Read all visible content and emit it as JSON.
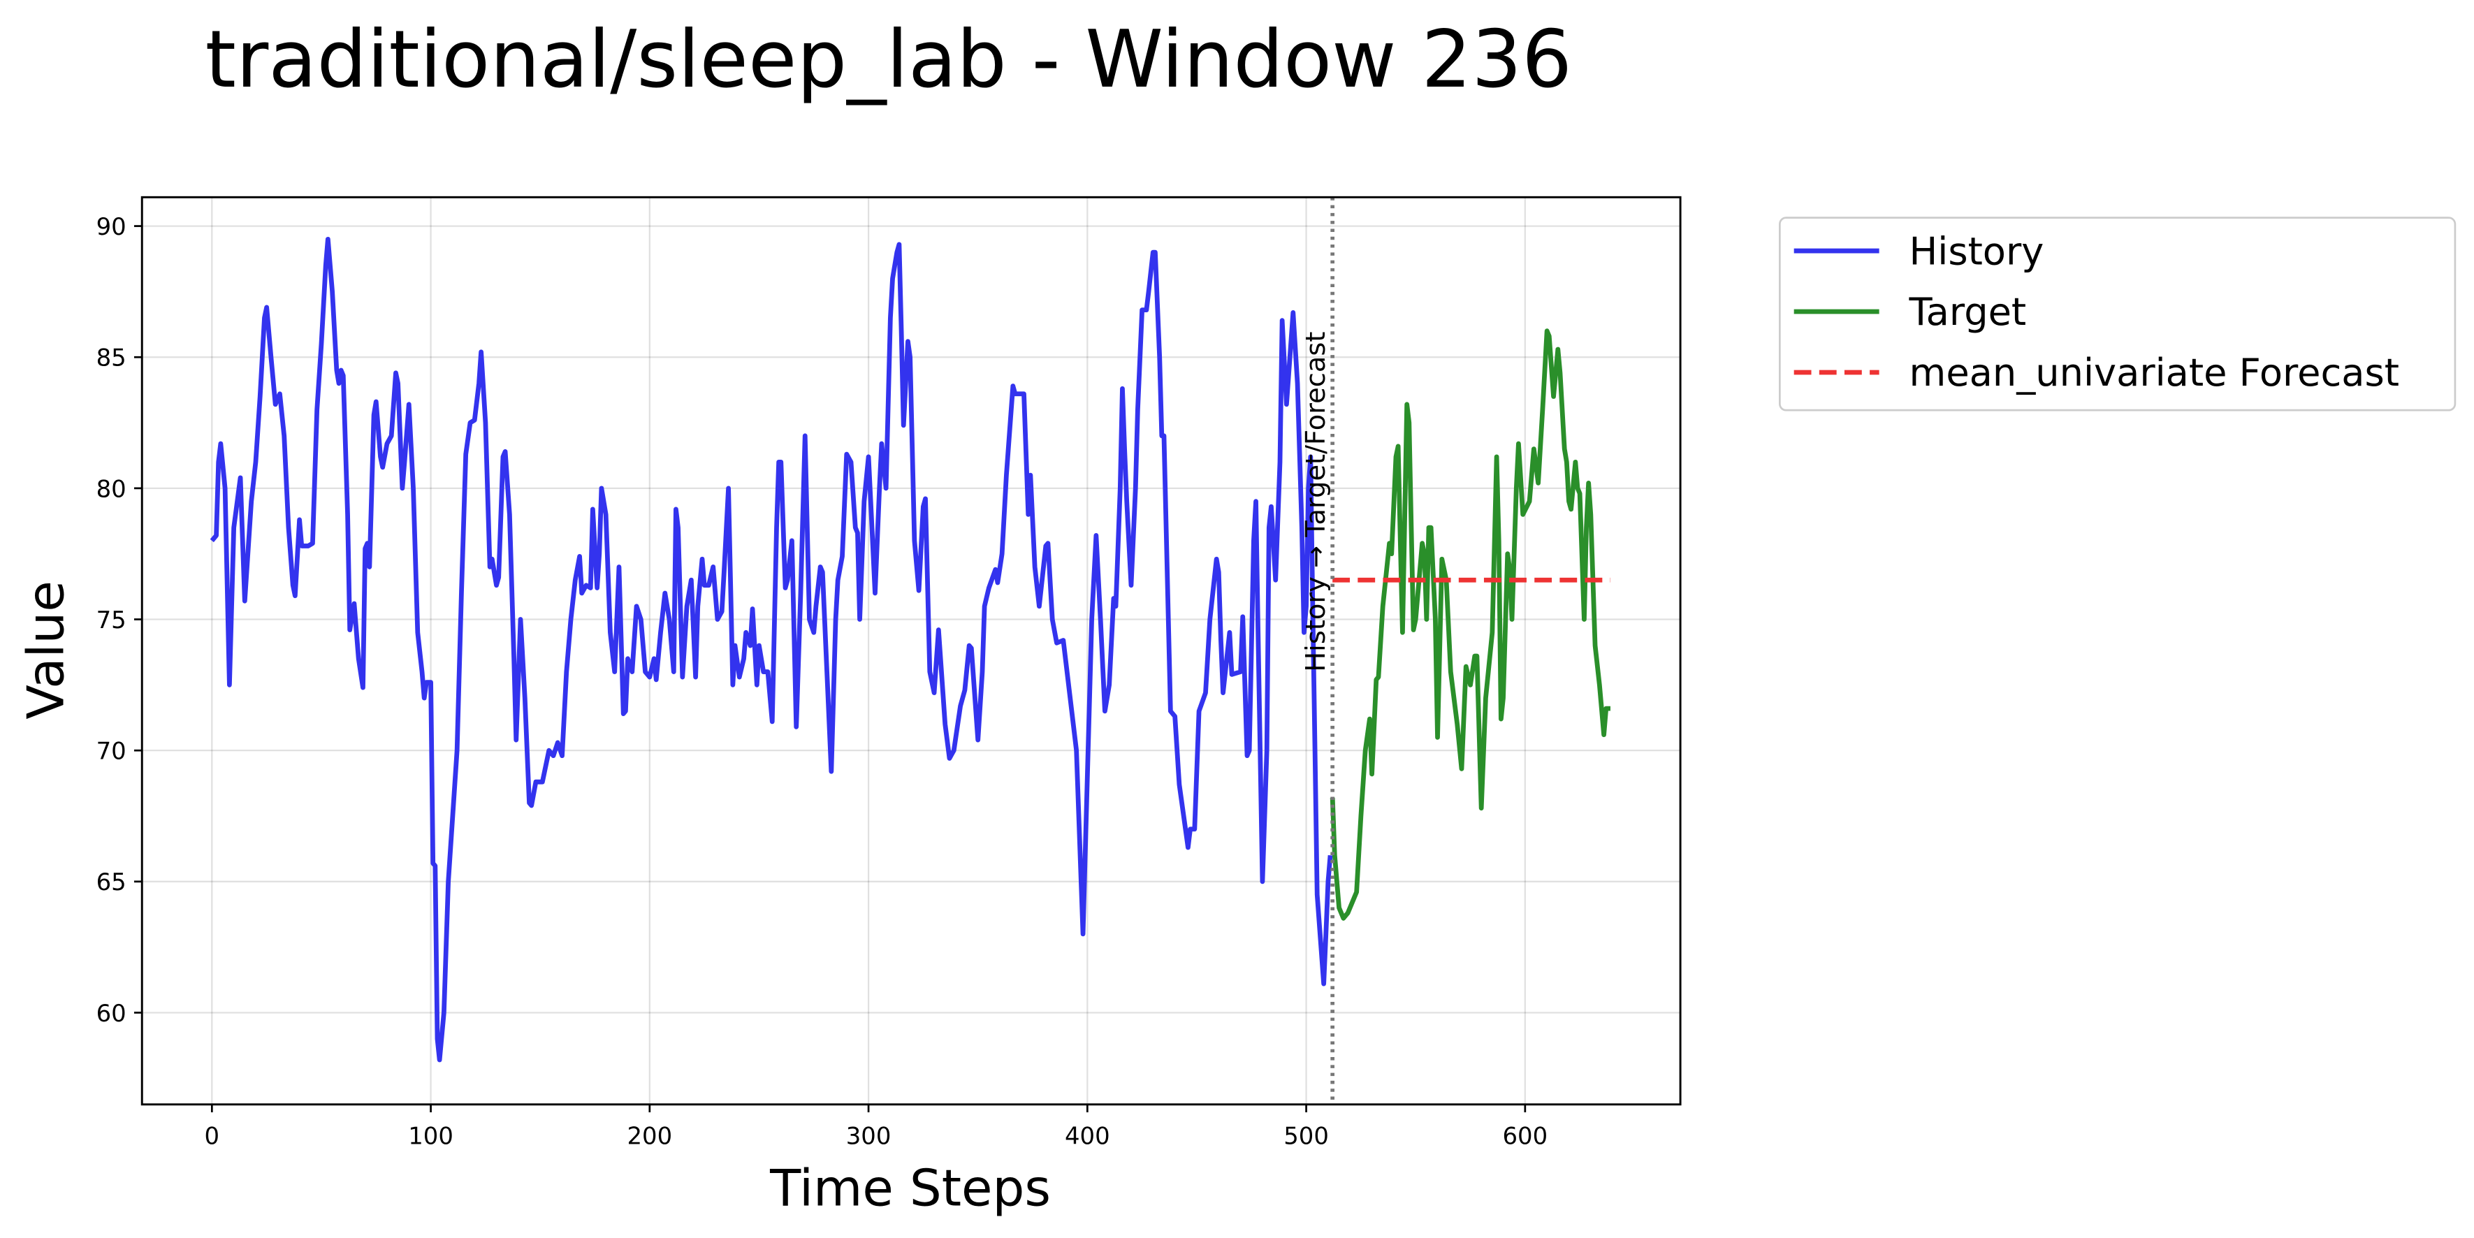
{
  "chart_data": {
    "type": "line",
    "title": "traditional/sleep_lab - Window 236",
    "x_label": "Time Steps",
    "y_label": "Value",
    "xlim": [
      -31.95,
      670.95
    ],
    "ylim": [
      56.5,
      91.1
    ],
    "xticks": [
      0,
      100,
      200,
      300,
      400,
      500,
      600
    ],
    "yticks": [
      60,
      65,
      70,
      75,
      80,
      85,
      90
    ],
    "grid": true,
    "legend": "outside-upper-right",
    "vline": {
      "x": 512,
      "label": "History → Target/Forecast",
      "color": "#777777"
    },
    "series": [
      {
        "name": "History",
        "color": "#3333ee",
        "style": "solid",
        "x": [
          0,
          2,
          3,
          4,
          6,
          8,
          10,
          13,
          15,
          18,
          20,
          22,
          24,
          25,
          27,
          29,
          31,
          33,
          35,
          37,
          38,
          40,
          41,
          44,
          46,
          48,
          50,
          52,
          53,
          55,
          57,
          58,
          59,
          60,
          62,
          63,
          65,
          67,
          69,
          70,
          71,
          72,
          74,
          75,
          77,
          78,
          80,
          82,
          84,
          85,
          87,
          88,
          90,
          92,
          94,
          96,
          97,
          98,
          100,
          101,
          102,
          103,
          104,
          106,
          108,
          110,
          112,
          114,
          116,
          118,
          120,
          122,
          123,
          125,
          127,
          128,
          130,
          131,
          133,
          134,
          136,
          138,
          139,
          141,
          143,
          145,
          146,
          148,
          151,
          154,
          156,
          158,
          160,
          162,
          164,
          166,
          168,
          169,
          171,
          173,
          174,
          176,
          177,
          178,
          180,
          182,
          184,
          186,
          188,
          189,
          190,
          192,
          194,
          196,
          198,
          200,
          202,
          203,
          205,
          207,
          209,
          211,
          212,
          213,
          215,
          217,
          219,
          221,
          222,
          224,
          225,
          227,
          229,
          231,
          233,
          234,
          236,
          238,
          239,
          241,
          243,
          244,
          246,
          247,
          249,
          250,
          252,
          254,
          256,
          258,
          259,
          260,
          262,
          263,
          265,
          267,
          269,
          271,
          273,
          275,
          276,
          278,
          279,
          281,
          283,
          285,
          286,
          288,
          290,
          292,
          294,
          295,
          296,
          298,
          300,
          301,
          303,
          305,
          306,
          308,
          310,
          311,
          313,
          314,
          315,
          316,
          318,
          319,
          321,
          323,
          325,
          326,
          328,
          330,
          332,
          335,
          337,
          339,
          342,
          344,
          346,
          347,
          350,
          352,
          353,
          355,
          358,
          359,
          361,
          363,
          366,
          367,
          371,
          373,
          374,
          376,
          378,
          381,
          382,
          384,
          386,
          389,
          395,
          398,
          400,
          402,
          404,
          406,
          408,
          410,
          412,
          413,
          415,
          416,
          417,
          418,
          420,
          422,
          423,
          425,
          427,
          428,
          430,
          431,
          433,
          434,
          435,
          437,
          438,
          440,
          442,
          444,
          446,
          447,
          449,
          451,
          454,
          456,
          459,
          460,
          461,
          462,
          465,
          466,
          470,
          471,
          473,
          474,
          476,
          477,
          478,
          480,
          482,
          483,
          484,
          486,
          488,
          489,
          491,
          494,
          496,
          498,
          499,
          500,
          501,
          502,
          503,
          504,
          505,
          508,
          509,
          510,
          511
        ],
        "values": [
          78,
          78.2,
          81,
          81.7,
          80,
          72.5,
          78.5,
          80.4,
          75.7,
          79.5,
          81,
          83.5,
          86.5,
          86.9,
          85,
          83.2,
          83.6,
          82,
          78.5,
          76.3,
          75.9,
          78.8,
          77.8,
          77.8,
          77.9,
          83,
          85.5,
          88.5,
          89.5,
          87.5,
          84.5,
          84,
          84.5,
          84.3,
          79,
          74.6,
          75.6,
          73.5,
          72.4,
          77.7,
          77.9,
          77,
          82.8,
          83.3,
          81.2,
          80.8,
          81.7,
          82,
          84.4,
          84,
          80,
          81,
          83.2,
          80,
          74.5,
          73,
          72,
          72.6,
          72.6,
          65.7,
          65.6,
          59,
          58.2,
          60,
          65,
          67.5,
          70,
          76,
          81.3,
          82.5,
          82.6,
          84,
          85.2,
          82.5,
          77,
          77.3,
          76.3,
          76.6,
          81.2,
          81.4,
          79,
          73.5,
          70.4,
          75,
          72,
          68,
          67.9,
          68.8,
          68.8,
          70,
          69.8,
          70.3,
          69.8,
          73,
          75,
          76.5,
          77.4,
          76,
          76.3,
          76.2,
          79.2,
          76.2,
          77.5,
          80,
          79,
          74.5,
          73,
          77,
          71.4,
          71.5,
          73.5,
          73,
          75.5,
          75,
          73,
          72.8,
          73.5,
          72.7,
          74.5,
          76,
          75,
          73,
          79.2,
          78.5,
          72.8,
          75.5,
          76.5,
          72.8,
          75.5,
          77.3,
          76.3,
          76.3,
          77,
          75,
          75.3,
          76.8,
          80,
          72.5,
          74,
          72.8,
          73.5,
          74.5,
          74,
          75.4,
          72.5,
          74,
          73,
          73,
          71.1,
          78.5,
          81,
          81,
          76.2,
          76.5,
          78,
          70.9,
          76,
          82,
          75,
          74.5,
          75.5,
          77,
          76.8,
          73,
          69.2,
          75,
          76.5,
          77.4,
          81.3,
          81,
          78.5,
          78.3,
          75,
          79.5,
          81.2,
          79.5,
          76,
          80,
          81.7,
          80,
          86.5,
          88,
          89,
          89.3,
          86,
          82.4,
          85.6,
          85,
          78,
          76.1,
          79.3,
          79.6,
          73,
          72.2,
          74.6,
          71,
          69.7,
          70,
          71.7,
          72.3,
          74,
          73.9,
          70.4,
          73,
          75.5,
          76.2,
          76.9,
          76.4,
          77.5,
          80.5,
          83.9,
          83.6,
          83.6,
          79,
          80.5,
          77,
          75.5,
          77.8,
          77.9,
          75,
          74.1,
          74.2,
          70,
          63,
          69,
          75,
          78.2,
          75,
          71.5,
          72.5,
          75.8,
          75.5,
          80,
          83.8,
          81.5,
          79.5,
          76.3,
          80,
          83,
          86.8,
          86.8,
          87.5,
          89,
          89,
          85,
          82,
          82,
          75,
          71.5,
          71.3,
          68.7,
          67.5,
          66.3,
          67,
          67,
          71.5,
          72.2,
          75,
          77.3,
          76.8,
          74.2,
          72.2,
          74.5,
          72.9,
          73,
          75.1,
          69.8,
          70,
          78,
          79.5,
          74.5,
          65,
          70,
          78.5,
          79.3,
          76.5,
          81,
          86.4,
          83.2,
          86.7,
          84,
          78.5,
          74.5,
          75.5,
          80,
          81.2,
          75.3,
          70,
          64.5,
          61.1,
          63,
          65,
          66
        ]
      },
      {
        "name": "Target",
        "color": "#2a8f2a",
        "style": "solid",
        "x": [
          512,
          513,
          515,
          517,
          519,
          523,
          525,
          527,
          529,
          530,
          532,
          533,
          535,
          538,
          539,
          541,
          542,
          543,
          544,
          546,
          547,
          548,
          549,
          550,
          553,
          554,
          555,
          556,
          557,
          559,
          560,
          562,
          564,
          566,
          569,
          571,
          573,
          575,
          577,
          578,
          580,
          582,
          585,
          587,
          588,
          589,
          590,
          592,
          593,
          594,
          596,
          597,
          599,
          602,
          604,
          606,
          608,
          610,
          611,
          613,
          615,
          616,
          618,
          619,
          620,
          621,
          623,
          624,
          625,
          627,
          628,
          629,
          630,
          632,
          634,
          636,
          637,
          639
        ],
        "values": [
          68.2,
          66,
          64,
          63.6,
          63.8,
          64.6,
          67.5,
          70,
          71.2,
          69.1,
          72.7,
          72.8,
          75.5,
          77.9,
          77.5,
          81.2,
          81.6,
          78,
          74.5,
          83.2,
          82.5,
          78.5,
          74.6,
          75,
          77.9,
          77.5,
          75,
          78.5,
          78.5,
          75,
          70.5,
          77.3,
          76.5,
          73,
          71,
          69.3,
          73.2,
          72.5,
          73.6,
          73.6,
          67.8,
          72,
          74.5,
          81.2,
          78,
          71.2,
          72,
          77.5,
          76.9,
          75,
          80,
          81.7,
          79,
          79.5,
          81.5,
          80.2,
          83,
          86,
          85.8,
          83.5,
          85.3,
          84.4,
          81.5,
          81,
          79.5,
          79.2,
          81,
          80,
          79.8,
          75,
          78.5,
          80.2,
          79,
          74,
          72.5,
          70.6,
          71.6,
          71.6
        ]
      },
      {
        "name": "mean_univariate Forecast",
        "color": "#ee3333",
        "style": "dashed",
        "x": [
          512,
          639
        ],
        "values": [
          76.5,
          76.5
        ]
      }
    ]
  }
}
